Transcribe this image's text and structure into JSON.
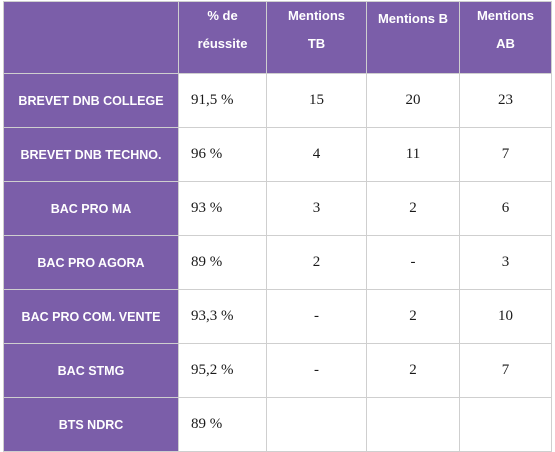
{
  "table": {
    "header": {
      "corner": "",
      "rate_line1": "% de",
      "rate_line2": "réussite",
      "tb_line1": "Mentions",
      "tb_line2": "TB",
      "b": "Mentions B",
      "ab_line1": "Mentions",
      "ab_line2": "AB"
    },
    "rows": [
      {
        "diploma": "BREVET DNB COLLEGE",
        "rate": "91,5 %",
        "tb": "15",
        "b": "20",
        "ab": "23"
      },
      {
        "diploma": "BREVET DNB TECHNO.",
        "rate": "96 %",
        "tb": "4",
        "b": "11",
        "ab": "7"
      },
      {
        "diploma": "BAC PRO MA",
        "rate": "93 %",
        "tb": "3",
        "b": "2",
        "ab": "6"
      },
      {
        "diploma": "BAC PRO AGORA",
        "rate": "89 %",
        "tb": "2",
        "b": "-",
        "ab": "3"
      },
      {
        "diploma": "BAC PRO COM. VENTE",
        "rate": "93,3 %",
        "tb": "-",
        "b": "2",
        "ab": "10"
      },
      {
        "diploma": "BAC STMG",
        "rate": "95,2 %",
        "tb": "-",
        "b": "2",
        "ab": "7"
      },
      {
        "diploma": "BTS NDRC",
        "rate": "89 %",
        "tb": "",
        "b": "",
        "ab": ""
      }
    ]
  },
  "colors": {
    "header_bg": "#7b5ea9",
    "header_text": "#ffffff",
    "cell_bg": "#ffffff",
    "border": "#cfcfcf"
  }
}
